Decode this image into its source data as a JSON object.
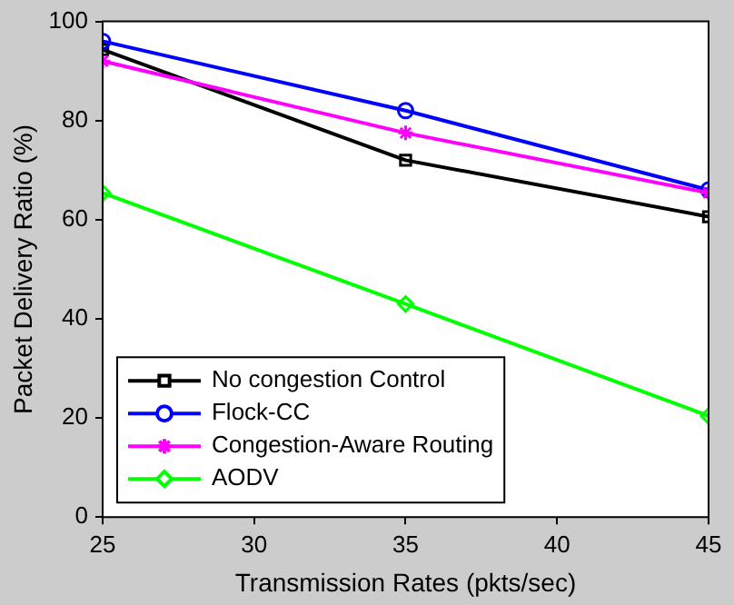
{
  "chart_data": {
    "type": "line",
    "xlabel": "Transmission Rates (pkts/sec)",
    "ylabel": "Packet Delivery Ratio (%)",
    "x": [
      25,
      35,
      45
    ],
    "xlim": [
      25,
      45
    ],
    "xticks": [
      25,
      30,
      35,
      40,
      45
    ],
    "ylim": [
      0,
      100
    ],
    "yticks": [
      0,
      20,
      40,
      60,
      80,
      100
    ],
    "legend": "bottom left",
    "series": [
      {
        "name": "No congestion Control",
        "color": "#000000",
        "marker": "square",
        "values": [
          94.3,
          72,
          60.6
        ]
      },
      {
        "name": "Flock-CC",
        "color": "#0000ff",
        "marker": "circle",
        "values": [
          96,
          82,
          66
        ]
      },
      {
        "name": "Congestion-Aware Routing",
        "color": "#ff00ff",
        "marker": "cross",
        "values": [
          92,
          77.5,
          65.4
        ]
      },
      {
        "name": "AODV",
        "color": "#00ff00",
        "marker": "diamond",
        "values": [
          65.4,
          43,
          20.4
        ]
      }
    ]
  }
}
